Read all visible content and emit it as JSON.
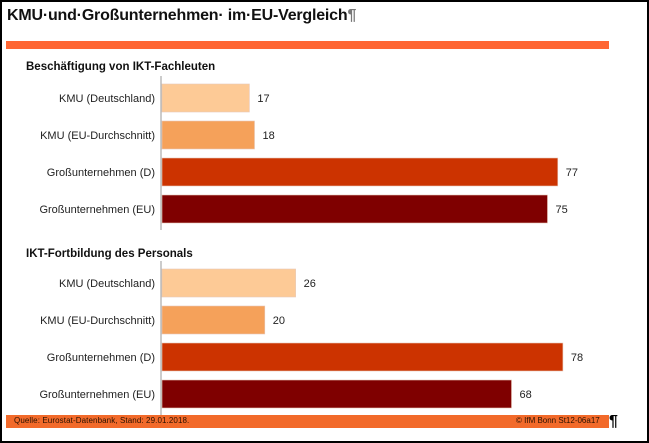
{
  "title": "KMU·und·Großunternehmen· im·EU-Vergleich",
  "title_mark": "¶",
  "colors": {
    "accent_rule": "#ff6633",
    "footer_bar": "#f26a2a",
    "kmu_de": "#fdca96",
    "kmu_eu": "#f5a15a",
    "gross_de": "#cc3300",
    "gross_eu": "#7f0000",
    "axis": "#999999"
  },
  "footer": {
    "source": "Quelle: Eurostat-Datenbank, Stand: 29.01.2018.",
    "credit": "© IfM Bonn  St12-06a17",
    "mark": "¶"
  },
  "chart_data": [
    {
      "type": "bar",
      "orientation": "horizontal",
      "title": "Beschäftigung von IKT-Fachleuten",
      "categories": [
        "KMU (Deutschland)",
        "KMU (EU-Durchschnitt)",
        "Großunternehmen (D)",
        "Großunternehmen (EU)"
      ],
      "values": [
        17,
        18,
        77,
        75
      ],
      "color_keys": [
        "kmu_de",
        "kmu_eu",
        "gross_de",
        "gross_eu"
      ],
      "xlabel": "",
      "ylabel": "",
      "xlim": [
        0,
        90
      ],
      "grid": false,
      "data_labels": true
    },
    {
      "type": "bar",
      "orientation": "horizontal",
      "title": "IKT-Fortbildung des Personals",
      "categories": [
        "KMU (Deutschland)",
        "KMU (EU-Durchschnitt)",
        "Großunternehmen (D)",
        "Großunternehmen (EU)"
      ],
      "values": [
        26,
        20,
        78,
        68
      ],
      "color_keys": [
        "kmu_de",
        "kmu_eu",
        "gross_de",
        "gross_eu"
      ],
      "xlabel": "",
      "ylabel": "",
      "xlim": [
        0,
        90
      ],
      "grid": false,
      "data_labels": true
    }
  ]
}
